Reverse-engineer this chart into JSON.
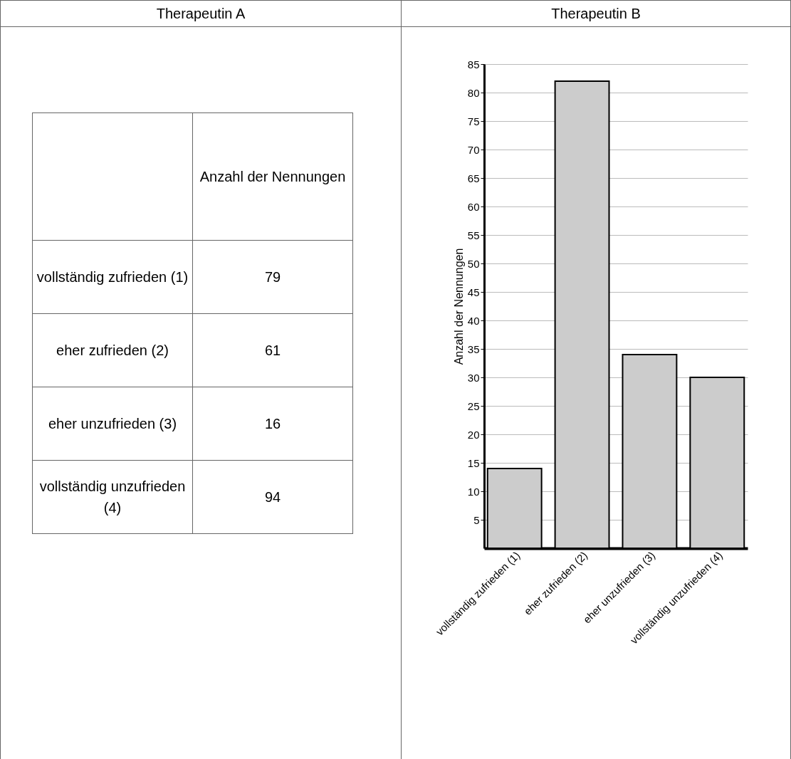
{
  "chart_data": [
    {
      "type": "other",
      "title": "Therapeutin A",
      "ylabel": "Anzahl der Nennungen",
      "categories": [
        "vollständig zufrieden (1)",
        "eher zufrieden (2)",
        "eher unzufrieden (3)",
        "vollständig unzufrieden (4)"
      ],
      "values": [
        79,
        61,
        16,
        94
      ],
      "data_labels": true
    },
    {
      "type": "bar",
      "title": "Therapeutin B",
      "ylabel": "Anzahl der Nennungen",
      "categories": [
        "vollständig zufrieden (1)",
        "eher zufrieden (2)",
        "eher unzufrieden (3)",
        "vollständig unzufrieden (4)"
      ],
      "values": [
        14,
        82,
        34,
        30
      ],
      "color": "#cccccc",
      "ylim": [
        0,
        85
      ],
      "yticks": [
        5,
        10,
        15,
        20,
        25,
        30,
        35,
        40,
        45,
        50,
        55,
        60,
        65,
        70,
        75,
        80,
        85
      ],
      "grid": "y"
    }
  ]
}
